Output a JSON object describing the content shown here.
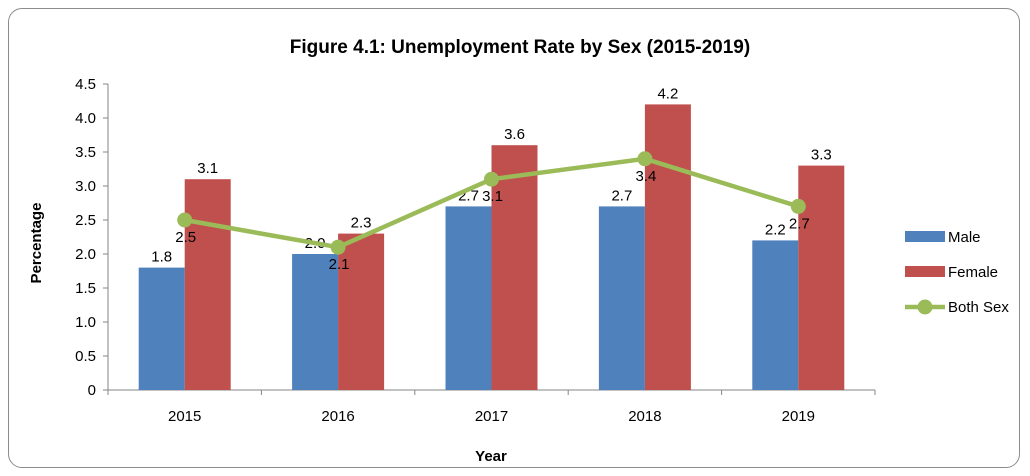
{
  "chart_data": {
    "type": "bar",
    "title": "Figure 4.1: Unemployment Rate by Sex (2015-2019)",
    "xlabel": "Year",
    "ylabel": "Percentage",
    "categories": [
      "2015",
      "2016",
      "2017",
      "2018",
      "2019"
    ],
    "ylim": [
      0,
      4.5
    ],
    "yticks": [
      "0",
      "0.5",
      "1.0",
      "1.5",
      "2.0",
      "2.5",
      "3.0",
      "3.5",
      "4.0",
      "4.5"
    ],
    "grid": false,
    "legend_position": "right",
    "series": [
      {
        "name": "Male",
        "kind": "bar",
        "color": "#4f81bd",
        "values": [
          1.8,
          2.0,
          2.7,
          2.7,
          2.2
        ],
        "labels": [
          "1.8",
          "2.0",
          "2.7",
          "2.7",
          "2.2"
        ]
      },
      {
        "name": "Female",
        "kind": "bar",
        "color": "#c0504d",
        "values": [
          3.1,
          2.3,
          3.6,
          4.2,
          3.3
        ],
        "labels": [
          "3.1",
          "2.3",
          "3.6",
          "4.2",
          "3.3"
        ]
      },
      {
        "name": "Both Sex",
        "kind": "line",
        "color": "#9bbb59",
        "values": [
          2.5,
          2.1,
          3.1,
          3.4,
          2.7
        ],
        "labels": [
          "2.5",
          "2.1",
          "3.1",
          "3.4",
          "2.7"
        ]
      }
    ]
  }
}
